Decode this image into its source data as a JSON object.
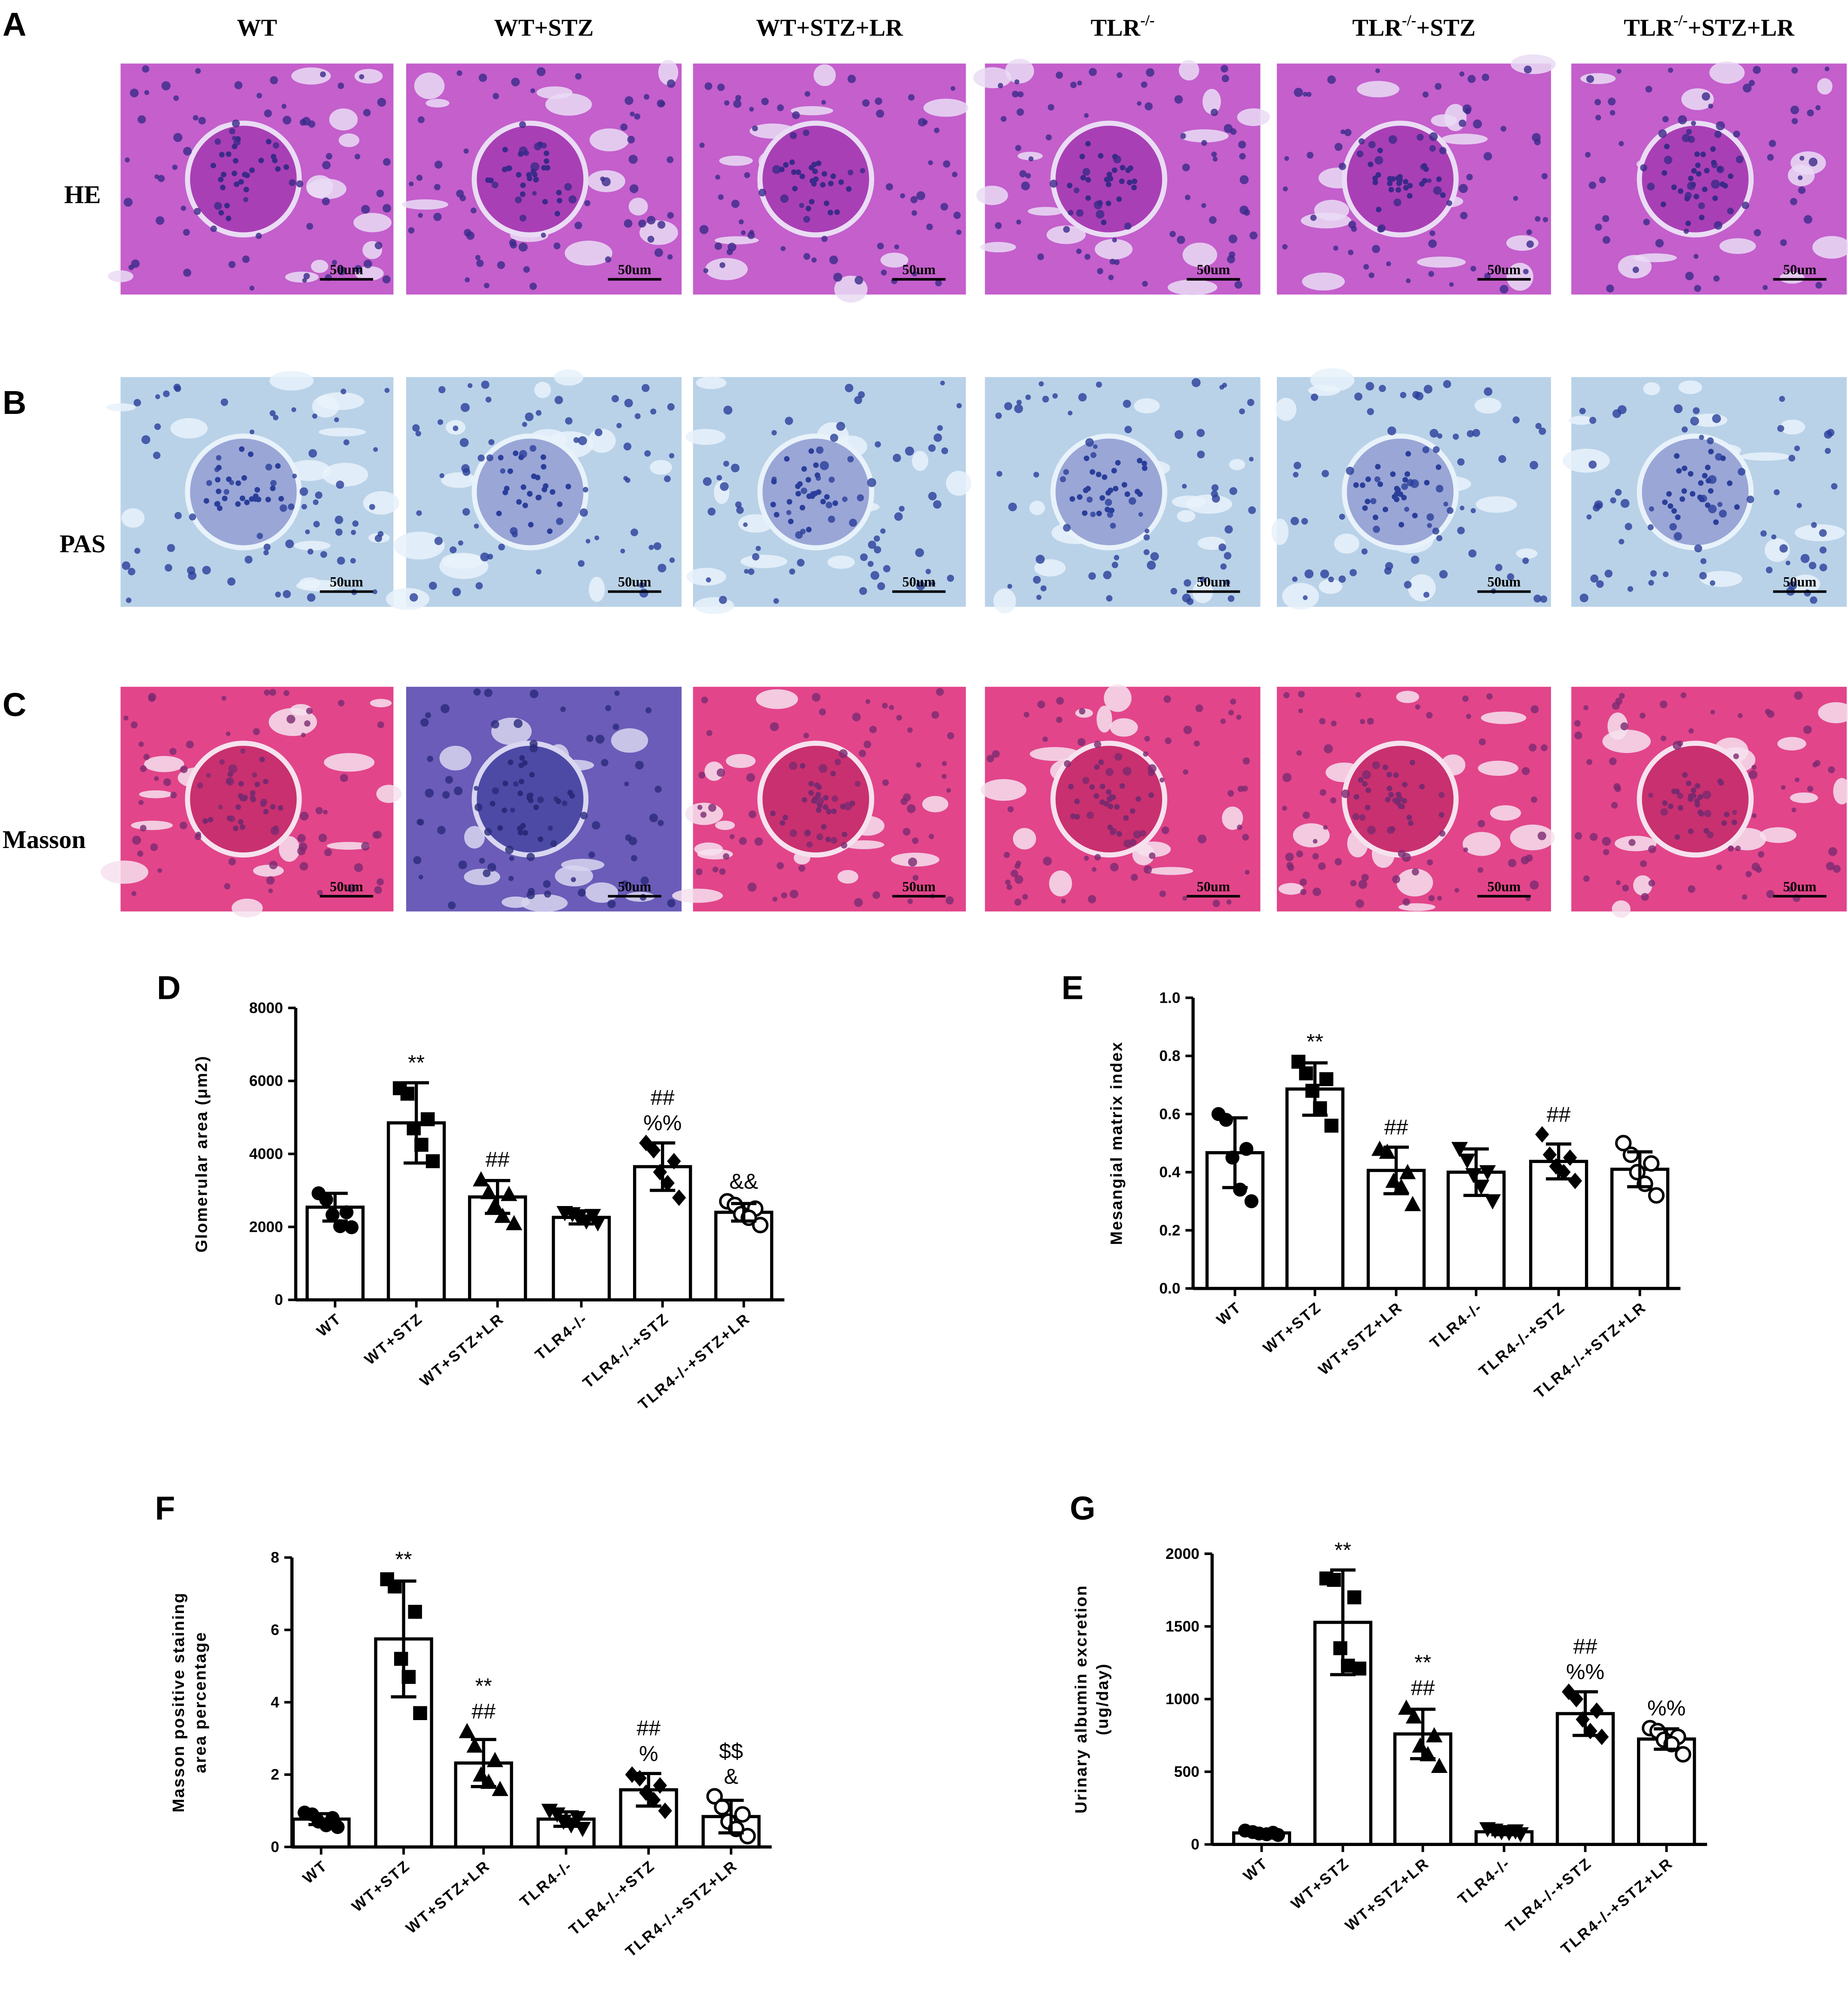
{
  "histology": {
    "panel_labels": [
      "A",
      "B",
      "C"
    ],
    "columns": [
      "WT",
      "WT+STZ",
      "WT+STZ+LR",
      {
        "main": "TLR",
        "sup": "-/-"
      },
      {
        "main": "TLR",
        "sup": "-/-",
        "suffix": "+STZ"
      },
      {
        "main": "TLR",
        "sup": "-/-",
        "suffix": "+STZ+LR"
      }
    ],
    "rows": [
      "HE",
      "PAS",
      "Masson"
    ],
    "scale_bar": "50um"
  },
  "chart_data": [
    {
      "type": "bar",
      "label": "D",
      "ylabel": "Glomerular area (μm2)",
      "categories": [
        "WT",
        "WT+STZ",
        "WT+STZ+LR",
        "TLR4-/-",
        "TLR4-/-+STZ",
        "TLR4-/-+STZ+LR"
      ],
      "values": [
        2540,
        4850,
        2820,
        2260,
        3650,
        2400
      ],
      "errors": [
        380,
        1100,
        450,
        180,
        650,
        240
      ],
      "points": [
        [
          2920,
          2750,
          2400,
          2330,
          2020,
          1990
        ],
        [
          5800,
          5650,
          4950,
          4700,
          4250,
          3800
        ],
        [
          3300,
          2950,
          2900,
          2600,
          2300,
          2100
        ],
        [
          2380,
          2350,
          2300,
          2250,
          2150,
          2100
        ],
        [
          4300,
          4100,
          3800,
          3500,
          3200,
          2800
        ],
        [
          2700,
          2600,
          2500,
          2350,
          2250,
          2050
        ]
      ],
      "annotations": [
        [],
        [
          "**"
        ],
        [
          "##"
        ],
        [],
        [
          "##",
          "%%"
        ],
        [
          "&&"
        ]
      ],
      "markers": [
        "circle",
        "square",
        "triangle",
        "triangle-down",
        "diamond",
        "open-circle"
      ],
      "ylim": [
        0,
        8000
      ],
      "yticks": [
        0,
        2000,
        4000,
        6000,
        8000
      ]
    },
    {
      "type": "bar",
      "label": "E",
      "ylabel": "Mesangial matrix index",
      "categories": [
        "WT",
        "WT+STZ",
        "WT+STZ+LR",
        "TLR4-/-",
        "TLR4-/-+STZ",
        "TLR4-/-+STZ+LR"
      ],
      "values": [
        0.467,
        0.686,
        0.406,
        0.4,
        0.437,
        0.41
      ],
      "errors": [
        0.12,
        0.09,
        0.08,
        0.08,
        0.06,
        0.06
      ],
      "points": [
        [
          0.6,
          0.58,
          0.48,
          0.45,
          0.34,
          0.3
        ],
        [
          0.78,
          0.74,
          0.72,
          0.68,
          0.62,
          0.56
        ],
        [
          0.48,
          0.47,
          0.4,
          0.37,
          0.35,
          0.29
        ],
        [
          0.48,
          0.44,
          0.4,
          0.39,
          0.35,
          0.3
        ],
        [
          0.53,
          0.46,
          0.45,
          0.42,
          0.4,
          0.37
        ],
        [
          0.5,
          0.46,
          0.43,
          0.4,
          0.36,
          0.32
        ]
      ],
      "annotations": [
        [],
        [
          "**"
        ],
        [
          "##"
        ],
        [],
        [
          "##"
        ],
        []
      ],
      "markers": [
        "circle",
        "square",
        "triangle",
        "triangle-down",
        "diamond",
        "open-circle"
      ],
      "ylim": [
        0,
        1.0
      ],
      "yticks": [
        {
          "value": 0,
          "label": "0.0"
        },
        0.2,
        0.4,
        0.6,
        0.8,
        {
          "value": 1.0,
          "label": "1.0"
        }
      ]
    },
    {
      "type": "bar",
      "label": "F",
      "ylabel": [
        "Masson positive staining",
        "area percentage"
      ],
      "categories": [
        "WT",
        "WT+STZ",
        "WT+STZ+LR",
        "TLR4-/-",
        "TLR4-/-+STZ",
        "TLR4-/-+STZ+LR"
      ],
      "values": [
        0.77,
        5.75,
        2.32,
        0.77,
        1.58,
        0.84
      ],
      "errors": [
        0.15,
        1.6,
        0.65,
        0.2,
        0.45,
        0.45
      ],
      "points": [
        [
          0.95,
          0.9,
          0.8,
          0.7,
          0.6,
          0.55
        ],
        [
          7.4,
          7.2,
          6.5,
          5.2,
          4.7,
          3.7
        ],
        [
          3.2,
          2.8,
          2.4,
          2.0,
          1.8,
          1.6
        ],
        [
          1.0,
          0.9,
          0.8,
          0.7,
          0.6,
          0.5
        ],
        [
          2.0,
          1.9,
          1.7,
          1.5,
          1.3,
          1.0
        ],
        [
          1.4,
          1.1,
          0.9,
          0.7,
          0.5,
          0.3
        ]
      ],
      "annotations": [
        [],
        [
          "**"
        ],
        [
          "**",
          "##"
        ],
        [],
        [
          "##",
          "%"
        ],
        [
          "$$",
          "&"
        ]
      ],
      "markers": [
        "circle",
        "square",
        "triangle",
        "triangle-down",
        "diamond",
        "open-circle"
      ],
      "ylim": [
        0,
        8
      ],
      "yticks": [
        0,
        2,
        4,
        6,
        8
      ]
    },
    {
      "type": "bar",
      "label": "G",
      "ylabel": [
        "Urinary albumin excretion",
        "(ug/day)"
      ],
      "categories": [
        "WT",
        "WT+STZ",
        "WT+STZ+LR",
        "TLR4-/-",
        "TLR4-/-+STZ",
        "TLR4-/-+STZ+LR"
      ],
      "values": [
        79,
        1528,
        760,
        87,
        900,
        725
      ],
      "errors": [
        20,
        360,
        170,
        20,
        150,
        70
      ],
      "points": [
        [
          95,
          85,
          80,
          75,
          70,
          65
        ],
        [
          1830,
          1820,
          1700,
          1350,
          1230,
          1210
        ],
        [
          940,
          880,
          750,
          680,
          620,
          540
        ],
        [
          105,
          95,
          90,
          85,
          80,
          70
        ],
        [
          1050,
          1000,
          920,
          860,
          780,
          740
        ],
        [
          800,
          780,
          740,
          720,
          690,
          620
        ]
      ],
      "annotations": [
        [],
        [
          "**"
        ],
        [
          "**",
          "##"
        ],
        [],
        [
          "##",
          "%%"
        ],
        [
          "%%"
        ]
      ],
      "markers": [
        "circle",
        "square",
        "triangle",
        "triangle-down",
        "diamond",
        "open-circle"
      ],
      "ylim": [
        0,
        2000
      ],
      "yticks": [
        0,
        500,
        1000,
        1500,
        2000
      ]
    }
  ]
}
